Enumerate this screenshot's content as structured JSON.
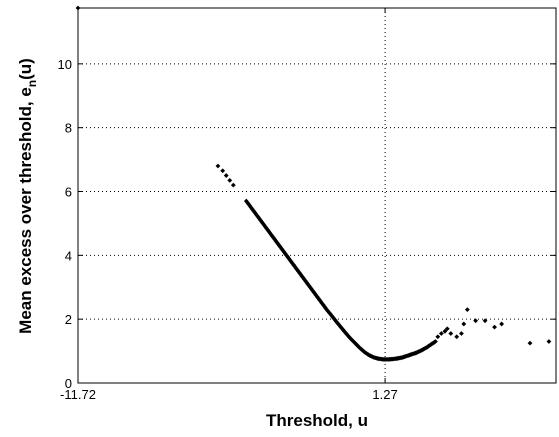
{
  "chart_data": {
    "type": "scatter",
    "title": "",
    "xlabel": "Threshold, u",
    "ylabel_main": "Mean excess over threshold, e",
    "ylabel_sub": "n",
    "ylabel_tail": "(u)",
    "x_ticks": [
      "-11.72",
      "1.27"
    ],
    "x_tick_values": [
      -11.72,
      1.27
    ],
    "y_ticks": [
      "0",
      "2",
      "4",
      "6",
      "8",
      "10"
    ],
    "y_tick_values": [
      0,
      2,
      4,
      6,
      8,
      10
    ],
    "xlim": [
      -11.72,
      8.5
    ],
    "ylim": [
      0,
      11.75
    ],
    "grid": true,
    "marker_color": "#000000",
    "points": [
      [
        -11.72,
        11.75
      ],
      [
        -5.8,
        6.8
      ],
      [
        -5.6,
        6.65
      ],
      [
        -5.45,
        6.5
      ],
      [
        -5.3,
        6.35
      ],
      [
        -5.15,
        6.2
      ],
      [
        -4.6,
        5.7
      ],
      [
        -4.4,
        5.5
      ],
      [
        -4.2,
        5.3
      ],
      [
        -4.0,
        5.1
      ],
      [
        -3.8,
        4.9
      ],
      [
        -3.6,
        4.7
      ],
      [
        -3.4,
        4.5
      ],
      [
        -3.2,
        4.3
      ],
      [
        -3.0,
        4.1
      ],
      [
        -2.8,
        3.9
      ],
      [
        -2.6,
        3.7
      ],
      [
        -2.4,
        3.5
      ],
      [
        -2.2,
        3.3
      ],
      [
        -2.0,
        3.1
      ],
      [
        -1.8,
        2.9
      ],
      [
        -1.6,
        2.7
      ],
      [
        -1.4,
        2.5
      ],
      [
        -1.2,
        2.3
      ],
      [
        -1.0,
        2.12
      ],
      [
        -0.8,
        1.93
      ],
      [
        -0.6,
        1.75
      ],
      [
        -0.4,
        1.57
      ],
      [
        -0.2,
        1.4
      ],
      [
        0.0,
        1.25
      ],
      [
        0.2,
        1.1
      ],
      [
        0.4,
        0.97
      ],
      [
        0.6,
        0.87
      ],
      [
        0.8,
        0.8
      ],
      [
        1.0,
        0.76
      ],
      [
        1.2,
        0.74
      ],
      [
        1.4,
        0.74
      ],
      [
        1.6,
        0.75
      ],
      [
        1.8,
        0.77
      ],
      [
        2.0,
        0.8
      ],
      [
        2.2,
        0.85
      ],
      [
        2.4,
        0.9
      ],
      [
        2.6,
        0.95
      ],
      [
        2.8,
        1.02
      ],
      [
        3.0,
        1.1
      ],
      [
        3.2,
        1.2
      ],
      [
        3.4,
        1.3
      ],
      [
        3.5,
        1.45
      ],
      [
        3.65,
        1.55
      ],
      [
        3.8,
        1.62
      ],
      [
        3.9,
        1.7
      ],
      [
        4.05,
        1.55
      ],
      [
        4.3,
        1.45
      ],
      [
        4.5,
        1.55
      ],
      [
        4.6,
        1.85
      ],
      [
        4.75,
        2.3
      ],
      [
        5.1,
        1.95
      ],
      [
        5.5,
        1.95
      ],
      [
        5.9,
        1.75
      ],
      [
        6.2,
        1.85
      ],
      [
        7.4,
        1.25
      ],
      [
        8.2,
        1.3
      ]
    ]
  }
}
